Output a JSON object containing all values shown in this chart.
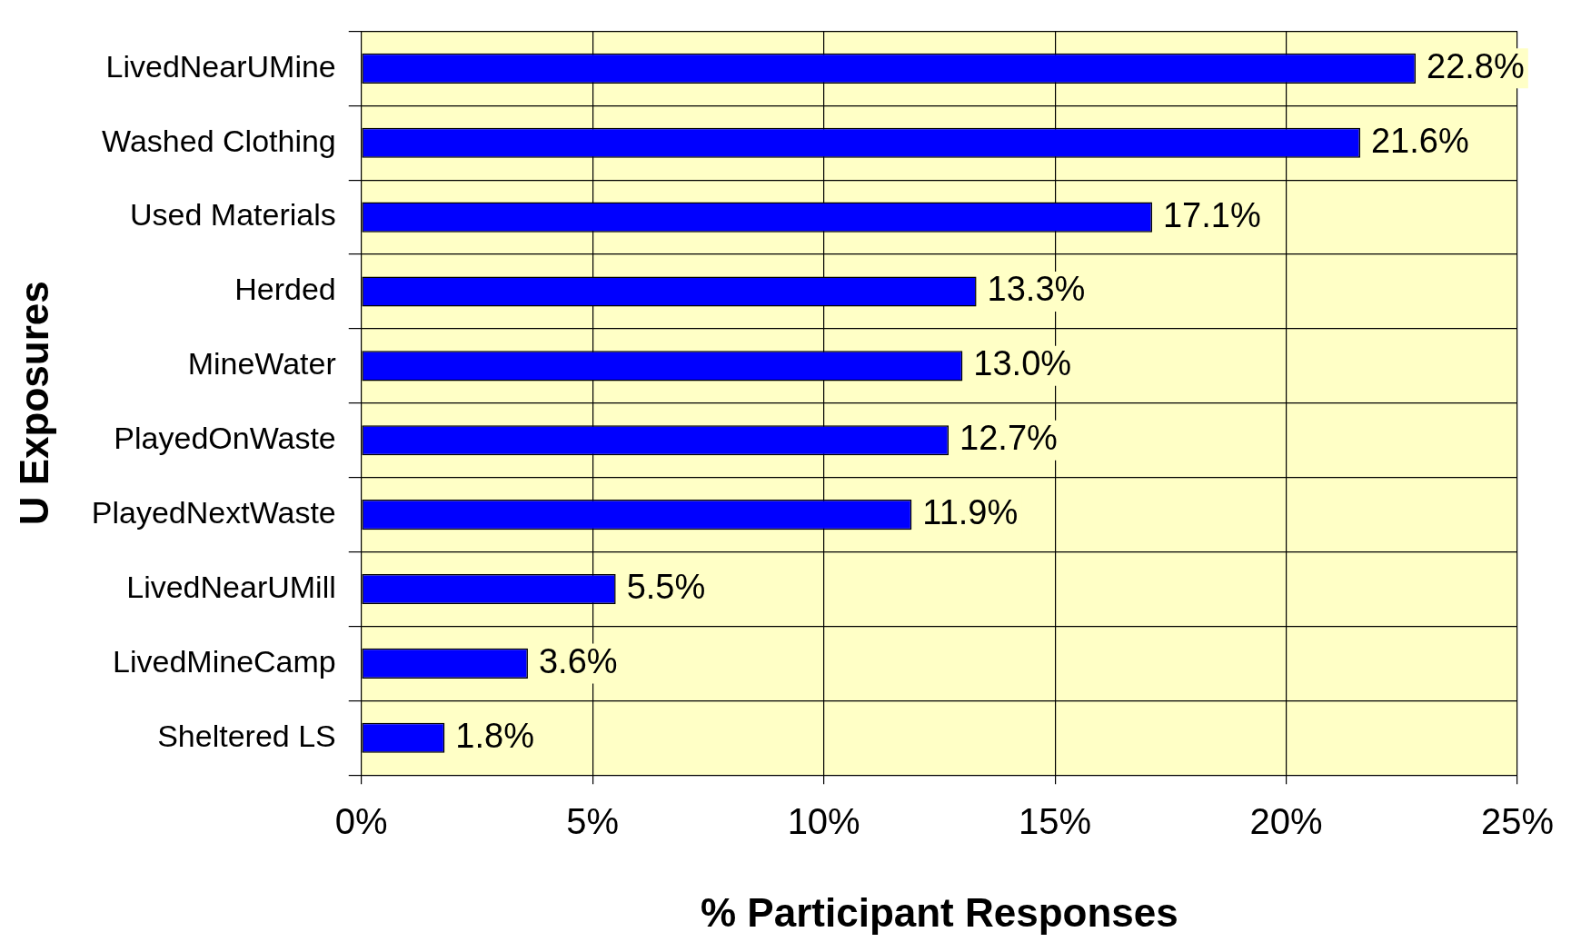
{
  "chart_data": {
    "type": "bar",
    "orientation": "horizontal",
    "xlabel": "% Participant Responses",
    "ylabel": "U Exposures",
    "categories": [
      "LivedNearUMine",
      "Washed Clothing",
      "Used Materials",
      "Herded",
      "MineWater",
      "PlayedOnWaste",
      "PlayedNextWaste",
      "LivedNearUMill",
      "LivedMineCamp",
      "Sheltered LS"
    ],
    "values": [
      22.8,
      21.6,
      17.1,
      13.3,
      13.0,
      12.7,
      11.9,
      5.5,
      3.6,
      1.8
    ],
    "value_labels": [
      "22.8%",
      "21.6%",
      "17.1%",
      "13.3%",
      "13.0%",
      "12.7%",
      "11.9%",
      "5.5%",
      "3.6%",
      "1.8%"
    ],
    "color": "#0000ff",
    "xlim": [
      0,
      25
    ],
    "xticks": [
      {
        "value": 0,
        "label": "0%"
      },
      {
        "value": 5,
        "label": "5%"
      },
      {
        "value": 10,
        "label": "10%"
      },
      {
        "value": 15,
        "label": "15%"
      },
      {
        "value": 20,
        "label": "20%"
      },
      {
        "value": 25,
        "label": "25%"
      }
    ],
    "grid": true,
    "legend": false
  }
}
